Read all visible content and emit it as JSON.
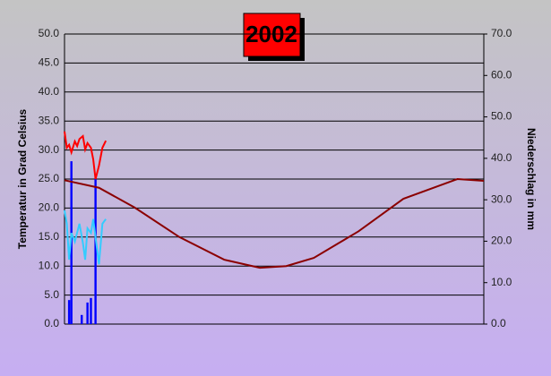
{
  "chart_data": {
    "type": "line",
    "title": "2002",
    "ylabel": "Temperatur in Grad Celsius",
    "y2label": "Niederschlag in mm",
    "xlim": [
      0,
      365
    ],
    "ylim": [
      0,
      50
    ],
    "yticks": [
      {
        "value": 0,
        "label": "0.0"
      },
      {
        "value": 5,
        "label": "5.0"
      },
      {
        "value": 10,
        "label": "10.0"
      },
      {
        "value": 15,
        "label": "15.0"
      },
      {
        "value": 20,
        "label": "20.0"
      },
      {
        "value": 25,
        "label": "25.0"
      },
      {
        "value": 30,
        "label": "30.0"
      },
      {
        "value": 35,
        "label": "35.0"
      },
      {
        "value": 40,
        "label": "40.0"
      },
      {
        "value": 45,
        "label": "45.0"
      },
      {
        "value": 50,
        "label": "50.0"
      }
    ],
    "y2lim": [
      0,
      70
    ],
    "y2ticks": [
      {
        "value": 0,
        "label": "0.0"
      },
      {
        "value": 10,
        "label": "10.0"
      },
      {
        "value": 20,
        "label": "20.0"
      },
      {
        "value": 30,
        "label": "30.0"
      },
      {
        "value": 40,
        "label": "40.0"
      },
      {
        "value": 50,
        "label": "50.0"
      },
      {
        "value": 60,
        "label": "60.0"
      },
      {
        "value": 70,
        "label": "70.0"
      }
    ],
    "grid": true,
    "series": [
      {
        "type": "line",
        "color": "#8b0000",
        "x": [
          0,
          30,
          61,
          100,
          139,
          170,
          193,
          217,
          256,
          295,
          342,
          365
        ],
        "values": [
          24.8,
          23.5,
          20.1,
          15.0,
          11.1,
          9.7,
          10.0,
          11.4,
          16.0,
          21.6,
          25.0,
          24.7
        ]
      },
      {
        "type": "line",
        "color": "#ff0000",
        "x": [
          0,
          2,
          4,
          6,
          9,
          11,
          13,
          16,
          18,
          20,
          23,
          25,
          27,
          30,
          33,
          36
        ],
        "values": [
          33.2,
          30.4,
          30.9,
          29.6,
          31.5,
          30.7,
          31.9,
          32.4,
          30.1,
          31.2,
          30.4,
          28.4,
          25.0,
          27.3,
          30.4,
          31.6
        ]
      },
      {
        "type": "line",
        "color": "#33ccff",
        "x": [
          0,
          2,
          4,
          6,
          9,
          13,
          16,
          18,
          20,
          23,
          25,
          30,
          33,
          36
        ],
        "values": [
          19.6,
          17.3,
          11.1,
          15.7,
          14.2,
          17.3,
          14.0,
          11.1,
          16.5,
          15.7,
          18.1,
          10.3,
          17.3,
          18.1
        ]
      },
      {
        "type": "bar",
        "axis": "y2",
        "color": "#0000ff",
        "x": [
          4,
          6,
          15,
          20,
          23,
          27
        ],
        "values": [
          5.8,
          39.3,
          2.2,
          5.2,
          6.3,
          35.0
        ]
      }
    ]
  }
}
